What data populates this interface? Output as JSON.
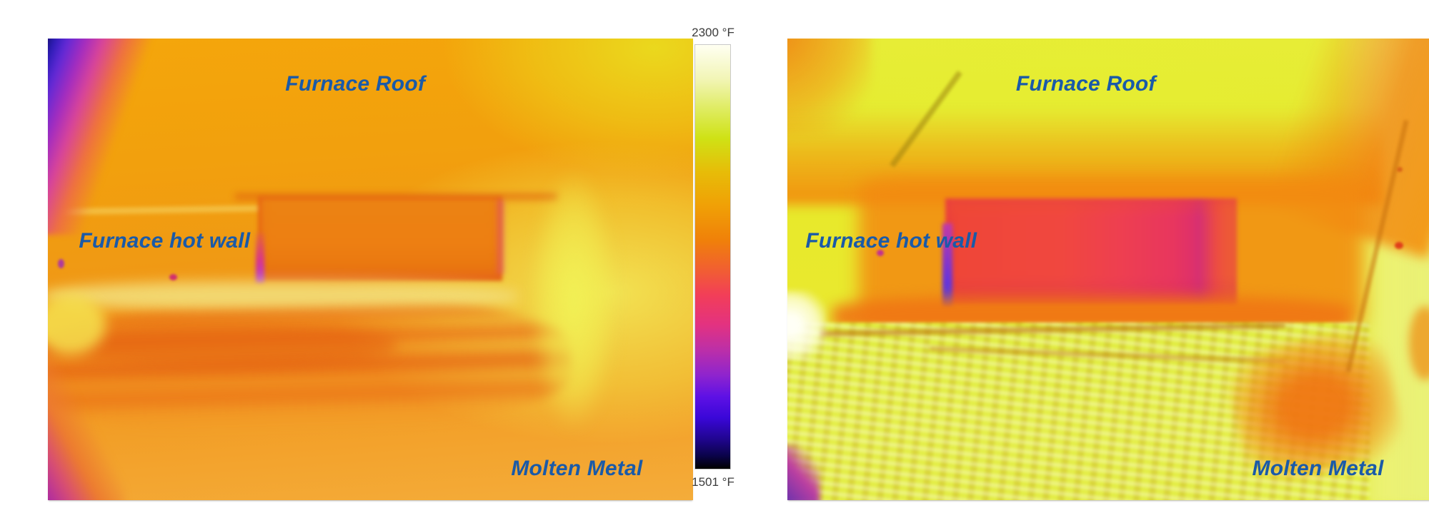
{
  "theme": {
    "page_bg": "#FFFFFF",
    "label_color": "#1A5AA8",
    "scale_text_color": "#3B3B3B",
    "colorbar_gradient": "linear-gradient(180deg,#FFFFF2 0%,#F2F5B6 8%,#DFEC62 15%,#CFE215 22%,#E7BC08 30%,#F0A006 38%,#F08109 46%,#F15F31 53%,#F23E58 59%,#E33280 66%,#BC2FA8 72%,#8E24CE 78%,#5E11E5 83%,#3A07D8 88%,#20058F 93%,#0A0348 97%,#000000 100%)"
  },
  "colorbar": {
    "max_label": "2300 °F",
    "min_label": "1501 °F",
    "max_value": 2300,
    "min_value": 1501,
    "unit": "°F",
    "palette_top_to_bottom": [
      "#FFFFF2",
      "#F2F5B6",
      "#DFEC62",
      "#CFE215",
      "#E7BC08",
      "#F0A006",
      "#F08109",
      "#F15F31",
      "#F23E58",
      "#E33280",
      "#BC2FA8",
      "#8E24CE",
      "#5E11E5",
      "#3A07D8",
      "#20058F",
      "#0A0348",
      "#000000"
    ]
  },
  "panels": {
    "left": {
      "labels": {
        "roof": "Furnace Roof",
        "hot_wall": "Furnace hot wall",
        "molten_metal": "Molten Metal"
      }
    },
    "right": {
      "labels": {
        "roof": "Furnace Roof",
        "hot_wall": "Furnace hot wall",
        "molten_metal": "Molten Metal"
      }
    }
  }
}
